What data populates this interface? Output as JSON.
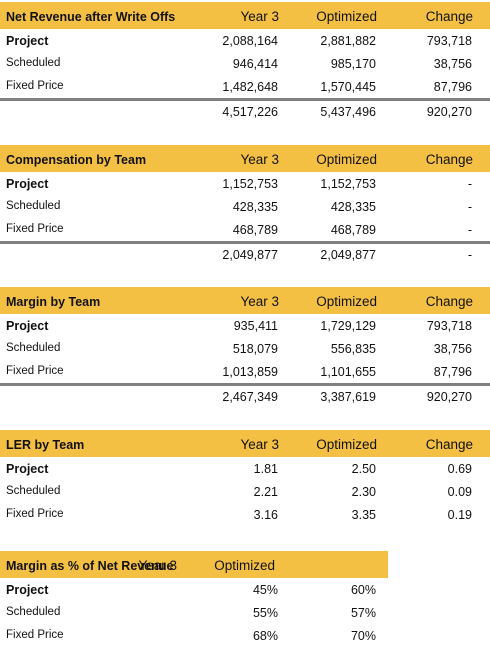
{
  "tables": [
    {
      "title": "Net Revenue after Write Offs",
      "columns": [
        "Year 3",
        "Optimized",
        "Change"
      ],
      "rows": [
        {
          "label": "Project",
          "values": [
            "2,088,164",
            "2,881,882",
            "793,718"
          ]
        },
        {
          "label": "Scheduled",
          "values": [
            "946,414",
            "985,170",
            "38,756"
          ]
        },
        {
          "label": "Fixed Price",
          "values": [
            "1,482,648",
            "1,570,445",
            "87,796"
          ]
        }
      ],
      "total": [
        "4,517,226",
        "5,437,496",
        "920,270"
      ]
    },
    {
      "title": "Compensation by Team",
      "columns": [
        "Year 3",
        "Optimized",
        "Change"
      ],
      "rows": [
        {
          "label": "Project",
          "values": [
            "1,152,753",
            "1,152,753",
            "-"
          ]
        },
        {
          "label": "Scheduled",
          "values": [
            "428,335",
            "428,335",
            "-"
          ]
        },
        {
          "label": "Fixed Price",
          "values": [
            "468,789",
            "468,789",
            "-"
          ]
        }
      ],
      "total": [
        "2,049,877",
        "2,049,877",
        "-"
      ]
    },
    {
      "title": "Margin by Team",
      "columns": [
        "Year 3",
        "Optimized",
        "Change"
      ],
      "rows": [
        {
          "label": "Project",
          "values": [
            "935,411",
            "1,729,129",
            "793,718"
          ]
        },
        {
          "label": "Scheduled",
          "values": [
            "518,079",
            "556,835",
            "38,756"
          ]
        },
        {
          "label": "Fixed Price",
          "values": [
            "1,013,859",
            "1,101,655",
            "87,796"
          ]
        }
      ],
      "total": [
        "2,467,349",
        "3,387,619",
        "920,270"
      ]
    },
    {
      "title": "LER by Team",
      "columns": [
        "Year 3",
        "Optimized",
        "Change"
      ],
      "rows": [
        {
          "label": "Project",
          "values": [
            "1.81",
            "2.50",
            "0.69"
          ]
        },
        {
          "label": "Scheduled",
          "values": [
            "2.21",
            "2.30",
            "0.09"
          ]
        },
        {
          "label": "Fixed Price",
          "values": [
            "3.16",
            "3.35",
            "0.19"
          ]
        }
      ]
    },
    {
      "title": "Margin as % of Net Revenue",
      "columns": [
        "Year 3",
        "Optimized"
      ],
      "rows": [
        {
          "label": "Project",
          "values": [
            "45%",
            "60%"
          ]
        },
        {
          "label": "Scheduled",
          "values": [
            "55%",
            "57%"
          ]
        },
        {
          "label": "Fixed Price",
          "values": [
            "68%",
            "70%"
          ]
        }
      ]
    }
  ]
}
